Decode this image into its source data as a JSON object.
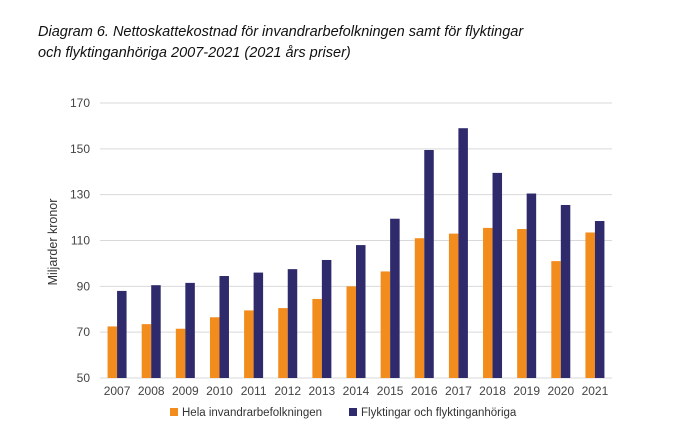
{
  "title_line1": "Diagram 6. Nettoskattekostnad för invandrarbefolkningen samt för flyktingar",
  "title_line2": "och flyktinganhöriga 2007-2021 (2021 års priser)",
  "chart_data": {
    "type": "bar",
    "title": "Diagram 6. Nettoskattekostnad för invandrarbefolkningen samt för flyktingar och flyktinganhöriga 2007-2021 (2021 års priser)",
    "xlabel": "",
    "ylabel": "Miljarder kronor",
    "ylim": [
      50,
      170
    ],
    "yticks": [
      50,
      70,
      90,
      110,
      130,
      150,
      170
    ],
    "categories": [
      "2007",
      "2008",
      "2009",
      "2010",
      "2011",
      "2012",
      "2013",
      "2014",
      "2015",
      "2016",
      "2017",
      "2018",
      "2019",
      "2020",
      "2021"
    ],
    "series": [
      {
        "name": "Hela invandrarbefolkningen",
        "color": "#f28c1c",
        "values": [
          72.5,
          73.5,
          71.5,
          76.5,
          79.5,
          80.5,
          84.5,
          90,
          96.5,
          111,
          113,
          115.5,
          115,
          101,
          113.5
        ]
      },
      {
        "name": "Flyktingar och flyktinganhöriga",
        "color": "#2e2a6b",
        "values": [
          88,
          90.5,
          91.5,
          94.5,
          96,
          97.5,
          101.5,
          108,
          119.5,
          149.5,
          159,
          139.5,
          130.5,
          125.5,
          118.5
        ]
      }
    ],
    "grid": true,
    "legend_position": "bottom"
  }
}
